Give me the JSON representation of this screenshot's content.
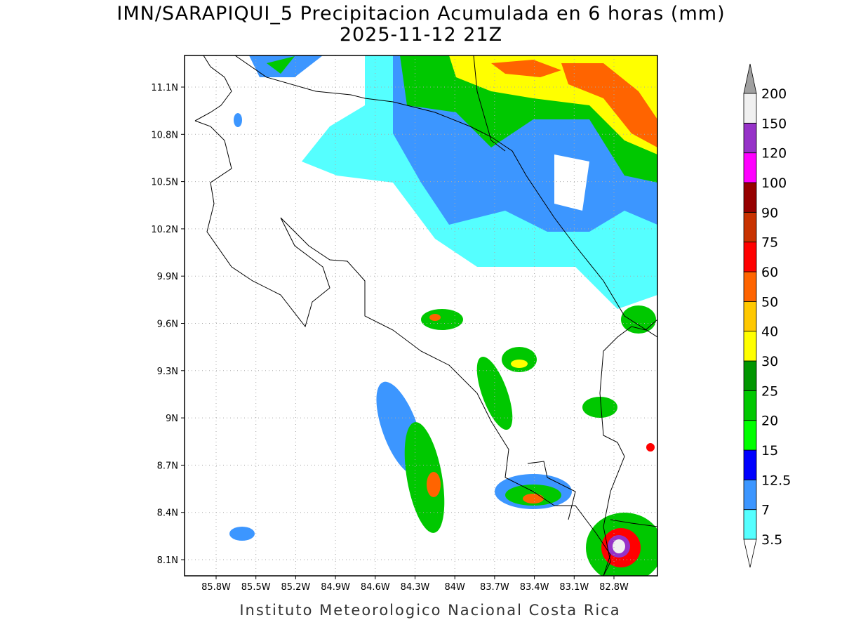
{
  "title": "IMN/SARAPIQUI_5 Precipitacion Acumulada en 6 horas (mm)",
  "subtitle": "2025-11-12 21Z",
  "footer": "Instituto Meteorologico Nacional Costa Rica",
  "map": {
    "lon_labels": [
      "85.8W",
      "85.5W",
      "85.2W",
      "84.9W",
      "84.6W",
      "84.3W",
      "84W",
      "83.7W",
      "83.4W",
      "83.1W",
      "82.8W"
    ],
    "lat_labels": [
      "11.1N",
      "10.8N",
      "10.5N",
      "10.2N",
      "9.9N",
      "9.6N",
      "9.3N",
      "9N",
      "8.7N",
      "8.4N",
      "8.1N"
    ]
  },
  "colorbar": {
    "labels": [
      "3.5",
      "7",
      "12.5",
      "15",
      "20",
      "25",
      "30",
      "40",
      "50",
      "60",
      "75",
      "90",
      "100",
      "120",
      "150",
      "200"
    ],
    "colors": [
      "#55ffff",
      "#3c96ff",
      "#0000ff",
      "#00ff00",
      "#00c800",
      "#009600",
      "#ffff00",
      "#ffc800",
      "#ff6400",
      "#ff0000",
      "#c83200",
      "#960000",
      "#ff00ff",
      "#9632c8",
      "#f0f0f0"
    ],
    "below_color": "#ffffff",
    "above_color": "#a0a0a0"
  }
}
